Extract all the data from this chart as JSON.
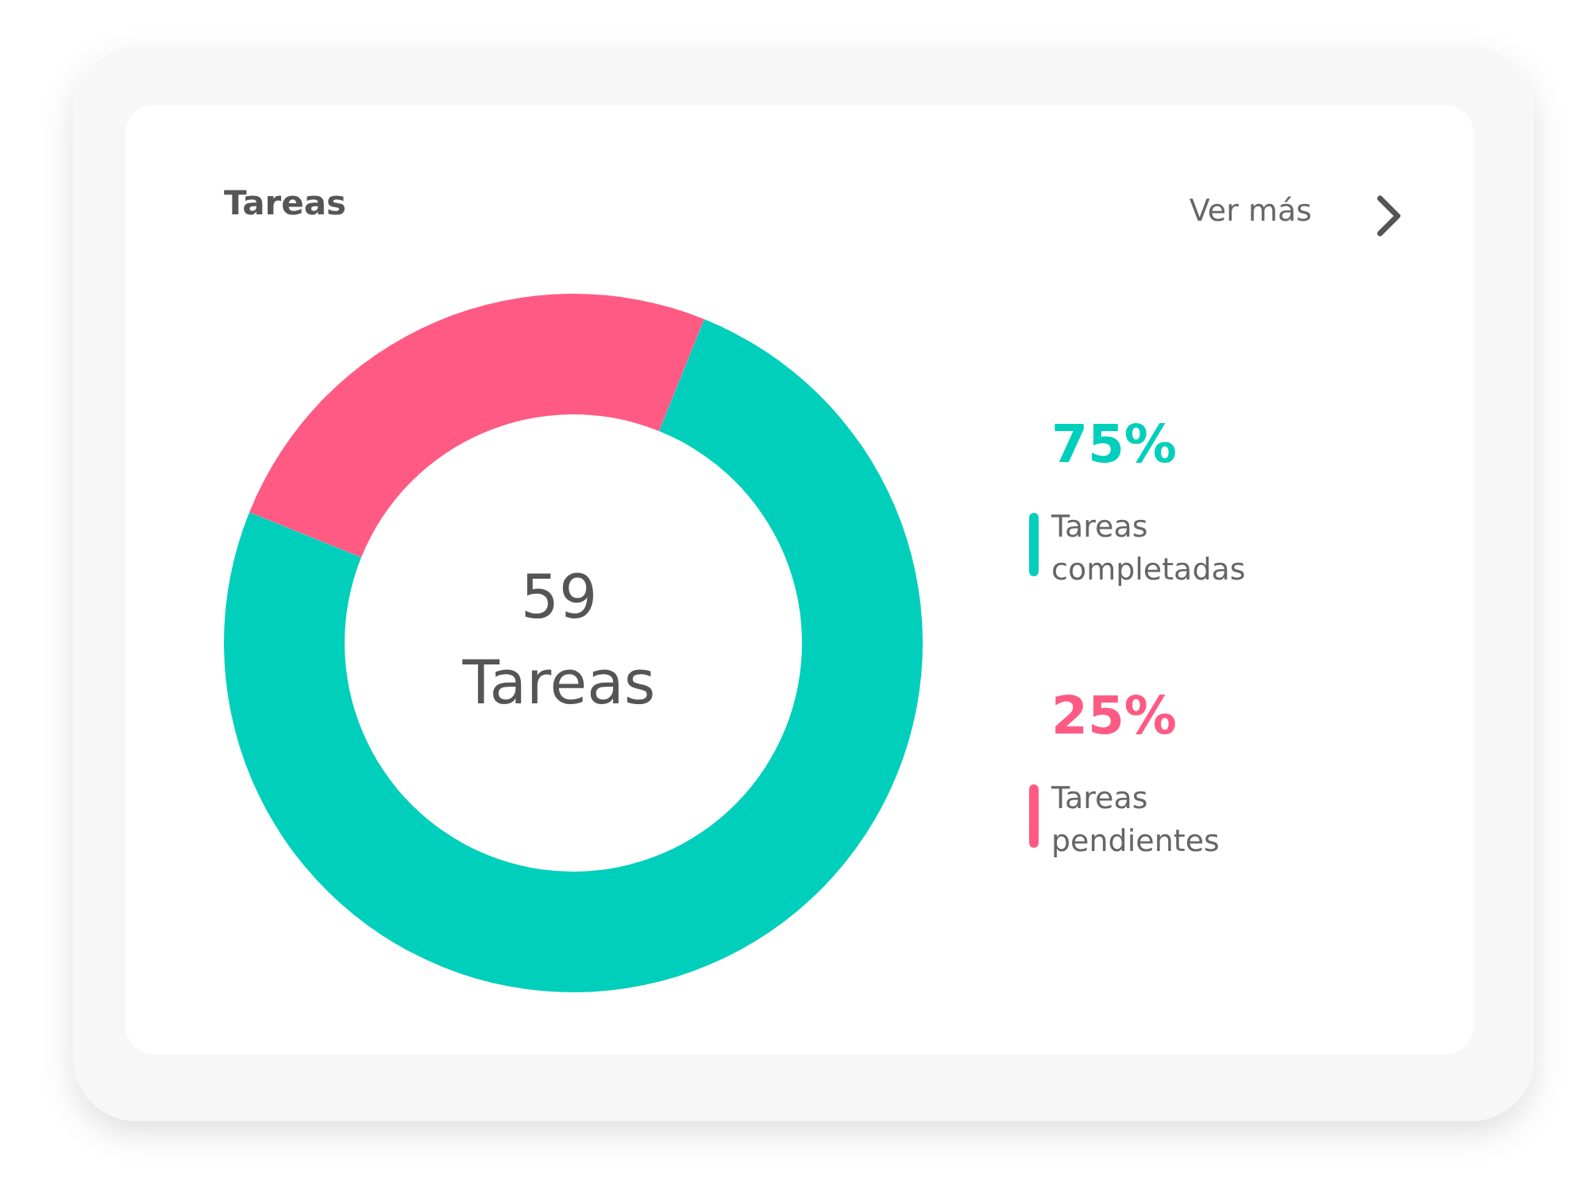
{
  "chart_data": {
    "type": "donut",
    "title": "Tareas",
    "categories": [
      "Tareas completadas",
      "Tareas pendientes"
    ],
    "values": [
      75,
      25
    ],
    "colors": [
      "#00cfbb",
      "#ff5a84"
    ],
    "value_labels": [
      "75%",
      "25%"
    ],
    "legend": "right",
    "annotations": [
      "59 Tareas",
      "Ver más"
    ]
  }
}
